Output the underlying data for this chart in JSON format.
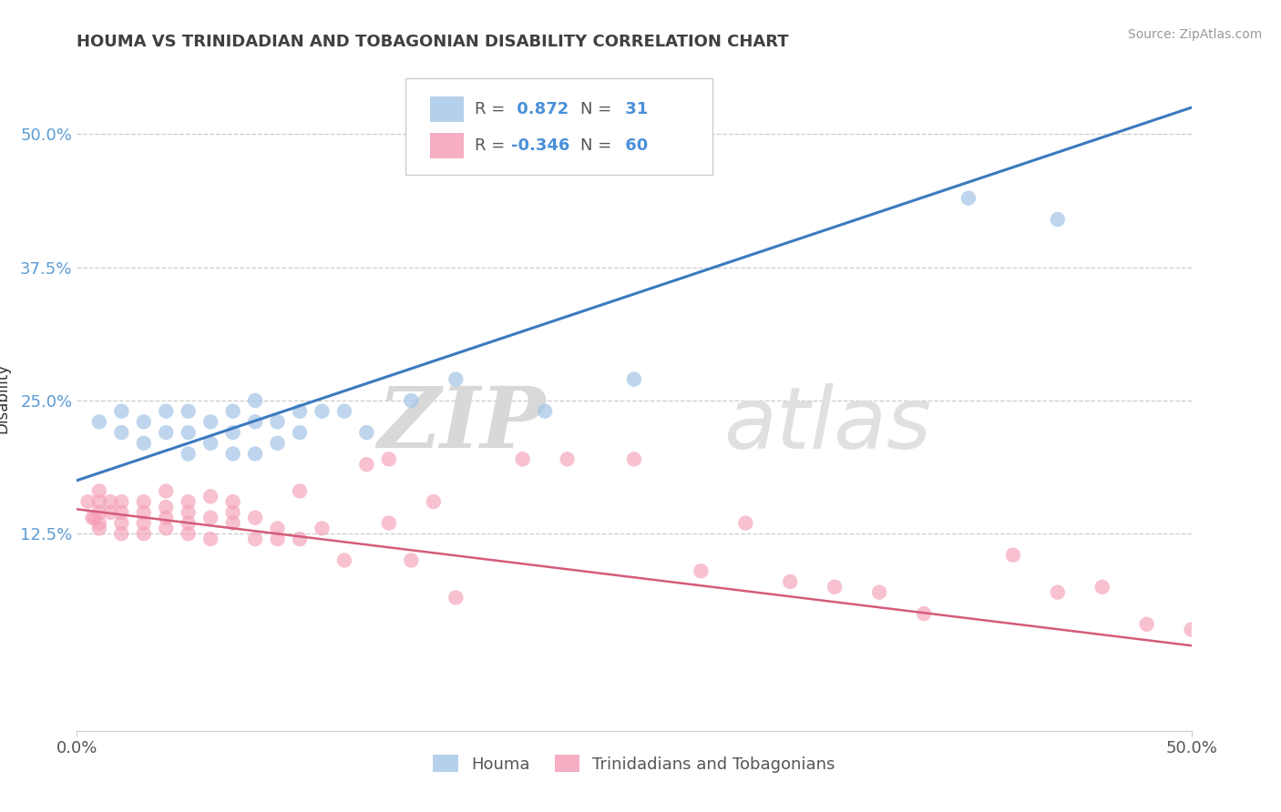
{
  "title": "HOUMA VS TRINIDADIAN AND TOBAGONIAN DISABILITY CORRELATION CHART",
  "source_text": "Source: ZipAtlas.com",
  "ylabel": "Disability",
  "xlim": [
    0.0,
    0.5
  ],
  "ylim": [
    -0.06,
    0.565
  ],
  "x_ticks": [
    0.0,
    0.5
  ],
  "x_tick_labels": [
    "0.0%",
    "50.0%"
  ],
  "y_tick_labels": [
    "12.5%",
    "25.0%",
    "37.5%",
    "50.0%"
  ],
  "y_tick_values": [
    0.125,
    0.25,
    0.375,
    0.5
  ],
  "grid_color": "#cccccc",
  "background_color": "#ffffff",
  "blue_R": 0.872,
  "blue_N": 31,
  "pink_R": -0.346,
  "pink_N": 60,
  "legend_label_blue": "Houma",
  "legend_label_pink": "Trinidadians and Tobagonians",
  "blue_color": "#a8c8e8",
  "pink_color": "#f4a0b8",
  "blue_line_color": "#3a7abf",
  "pink_line_color": "#d45c7a",
  "watermark_zip": "ZIP",
  "watermark_atlas": "atlas",
  "blue_scatter_x": [
    0.01,
    0.02,
    0.02,
    0.03,
    0.03,
    0.04,
    0.04,
    0.05,
    0.05,
    0.05,
    0.06,
    0.06,
    0.07,
    0.07,
    0.07,
    0.08,
    0.08,
    0.08,
    0.09,
    0.09,
    0.1,
    0.1,
    0.11,
    0.12,
    0.13,
    0.15,
    0.17,
    0.21,
    0.25,
    0.4,
    0.44
  ],
  "blue_scatter_y": [
    0.23,
    0.22,
    0.24,
    0.21,
    0.23,
    0.22,
    0.24,
    0.2,
    0.22,
    0.24,
    0.21,
    0.23,
    0.2,
    0.22,
    0.24,
    0.2,
    0.23,
    0.25,
    0.21,
    0.23,
    0.22,
    0.24,
    0.24,
    0.24,
    0.22,
    0.25,
    0.27,
    0.24,
    0.27,
    0.44,
    0.42
  ],
  "pink_scatter_x": [
    0.005,
    0.007,
    0.008,
    0.01,
    0.01,
    0.01,
    0.01,
    0.01,
    0.015,
    0.015,
    0.02,
    0.02,
    0.02,
    0.02,
    0.03,
    0.03,
    0.03,
    0.03,
    0.04,
    0.04,
    0.04,
    0.04,
    0.05,
    0.05,
    0.05,
    0.05,
    0.06,
    0.06,
    0.06,
    0.07,
    0.07,
    0.07,
    0.08,
    0.08,
    0.09,
    0.09,
    0.1,
    0.1,
    0.11,
    0.12,
    0.13,
    0.14,
    0.14,
    0.15,
    0.16,
    0.17,
    0.2,
    0.22,
    0.25,
    0.28,
    0.3,
    0.32,
    0.34,
    0.36,
    0.38,
    0.42,
    0.44,
    0.46,
    0.48,
    0.5
  ],
  "pink_scatter_y": [
    0.155,
    0.14,
    0.14,
    0.165,
    0.155,
    0.145,
    0.135,
    0.13,
    0.155,
    0.145,
    0.155,
    0.145,
    0.135,
    0.125,
    0.155,
    0.145,
    0.135,
    0.125,
    0.165,
    0.15,
    0.14,
    0.13,
    0.155,
    0.145,
    0.135,
    0.125,
    0.16,
    0.14,
    0.12,
    0.155,
    0.145,
    0.135,
    0.14,
    0.12,
    0.13,
    0.12,
    0.165,
    0.12,
    0.13,
    0.1,
    0.19,
    0.195,
    0.135,
    0.1,
    0.155,
    0.065,
    0.195,
    0.195,
    0.195,
    0.09,
    0.135,
    0.08,
    0.075,
    0.07,
    0.05,
    0.105,
    0.07,
    0.075,
    0.04,
    0.035
  ],
  "blue_line_x0": 0.0,
  "blue_line_y0": 0.175,
  "blue_line_x1": 0.5,
  "blue_line_y1": 0.525,
  "pink_line_x0": 0.0,
  "pink_line_y0": 0.148,
  "pink_line_x1": 0.5,
  "pink_line_y1": 0.02
}
